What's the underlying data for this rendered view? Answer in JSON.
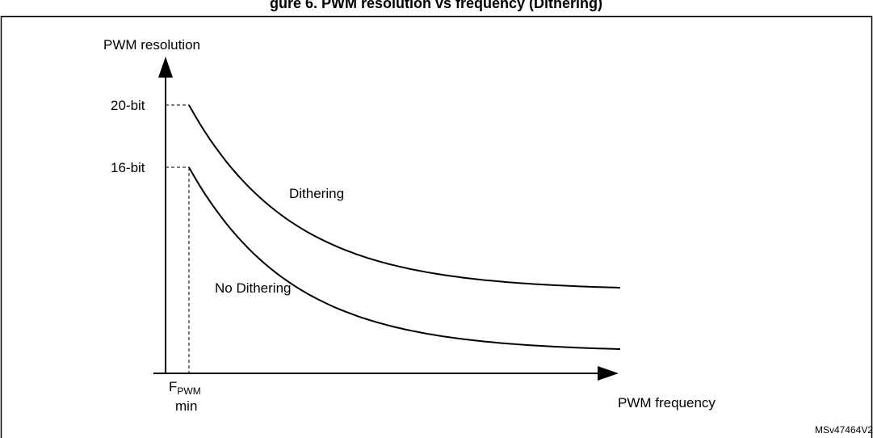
{
  "figure": {
    "title_fragment": "gure 6. PWM resolution vs frequency (Dithering)",
    "reference_code": "MSv47464V2"
  },
  "chart_data": {
    "type": "line",
    "ylabel": "PWM resolution",
    "xlabel": "PWM frequency",
    "y_ticks": [
      "20-bit",
      "16-bit"
    ],
    "x_tick_main": "F",
    "x_tick_sub": "PWM",
    "x_tick_line2": "min",
    "series": [
      {
        "name": "Dithering",
        "start_level": "20-bit"
      },
      {
        "name": "No Dithering",
        "start_level": "16-bit"
      }
    ],
    "grid": false
  },
  "colors": {
    "line": "#000000",
    "frame": "#000000"
  }
}
